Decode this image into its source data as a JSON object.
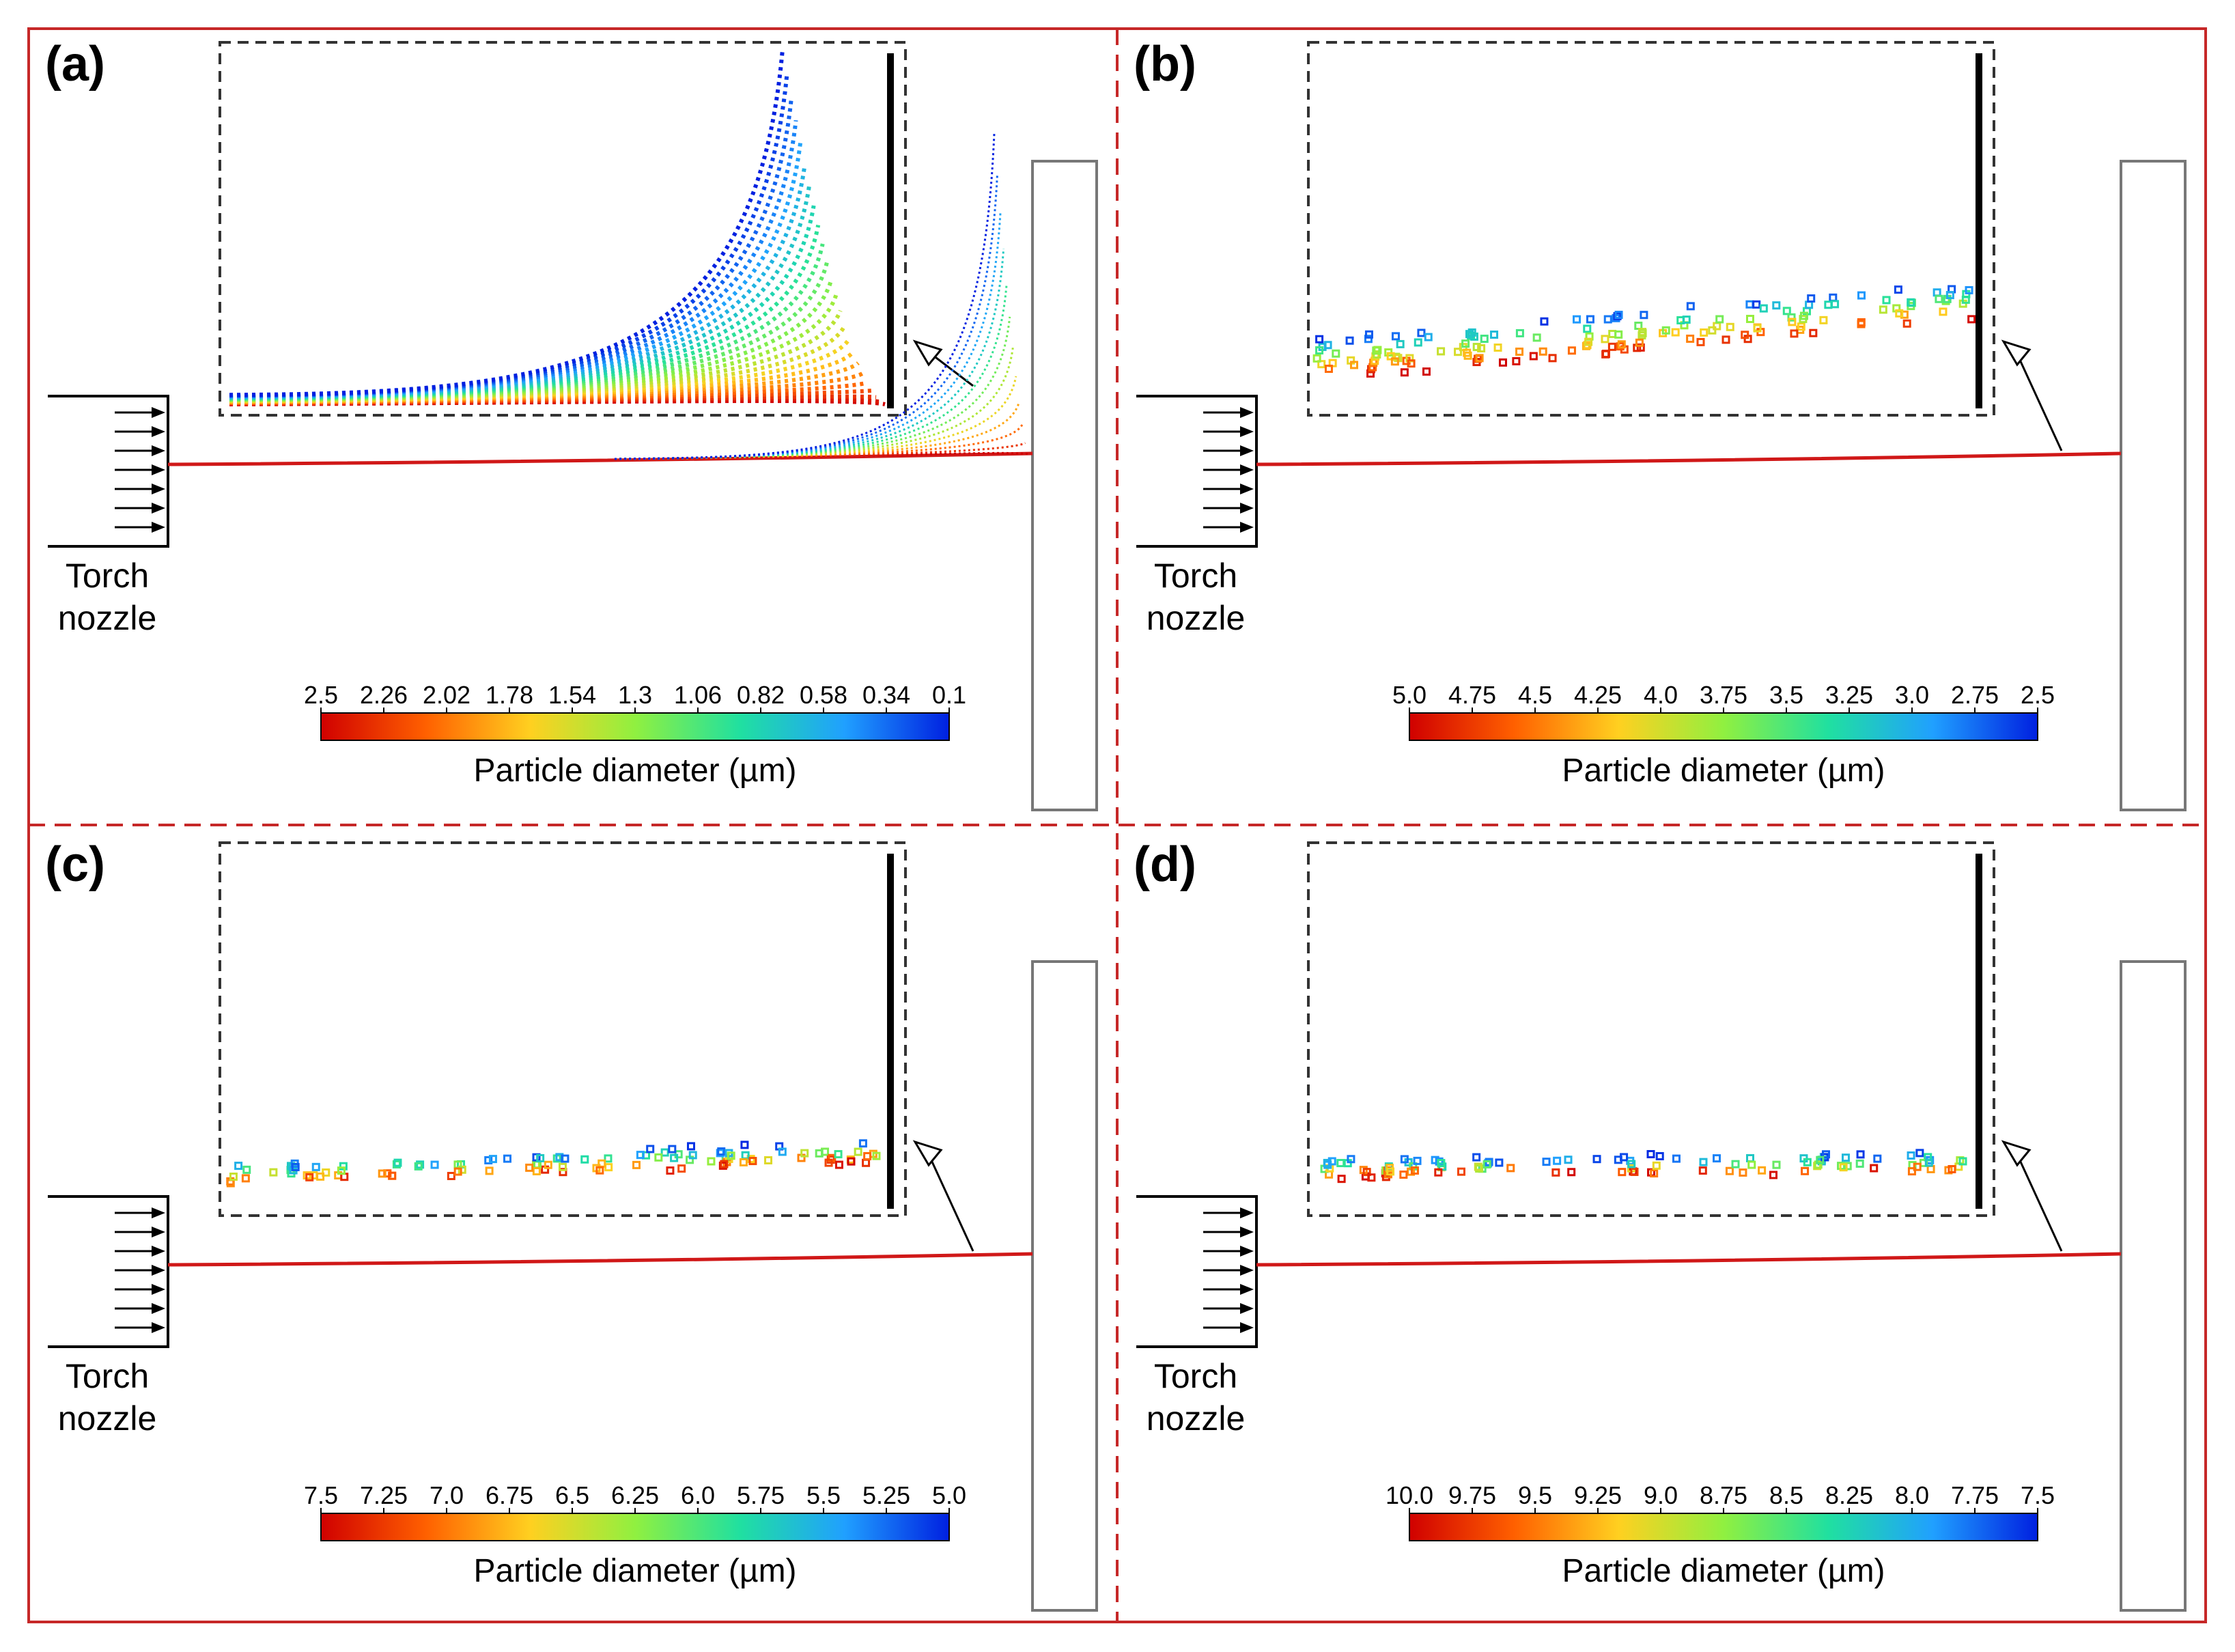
{
  "figure": {
    "colors": {
      "frame": "#c62828",
      "beam": "#d01818",
      "inset_border": "#333333",
      "substrate": "#777777"
    },
    "colorbar_stops": [
      "#d00000",
      "#ff6000",
      "#ffd020",
      "#90f040",
      "#20e0a0",
      "#20a0ff",
      "#0020e0"
    ],
    "panels": [
      {
        "id": "a",
        "label": "(a)",
        "nozzle_label": [
          "Torch",
          "nozzle"
        ],
        "colorbar": {
          "ticks": [
            "2.5",
            "2.26",
            "2.02",
            "1.78",
            "1.54",
            "1.3",
            "1.06",
            "0.82",
            "0.58",
            "0.34",
            "0.1"
          ],
          "title": "Particle diameter (µm)"
        },
        "icon": "trajectory-fan-icon"
      },
      {
        "id": "b",
        "label": "(b)",
        "nozzle_label": [
          "Torch",
          "nozzle"
        ],
        "colorbar": {
          "ticks": [
            "5.0",
            "4.75",
            "4.5",
            "4.25",
            "4.0",
            "3.75",
            "3.5",
            "3.25",
            "3.0",
            "2.75",
            "2.5"
          ],
          "title": "Particle diameter (µm)"
        },
        "icon": "particle-scatter-icon"
      },
      {
        "id": "c",
        "label": "(c)",
        "nozzle_label": [
          "Torch",
          "nozzle"
        ],
        "colorbar": {
          "ticks": [
            "7.5",
            "7.25",
            "7.0",
            "6.75",
            "6.5",
            "6.25",
            "6.0",
            "5.75",
            "5.5",
            "5.25",
            "5.0"
          ],
          "title": "Particle diameter (µm)"
        },
        "icon": "particle-scatter-icon"
      },
      {
        "id": "d",
        "label": "(d)",
        "nozzle_label": [
          "Torch",
          "nozzle"
        ],
        "colorbar": {
          "ticks": [
            "10.0",
            "9.75",
            "9.5",
            "9.25",
            "9.0",
            "8.75",
            "8.5",
            "8.25",
            "8.0",
            "7.75",
            "7.5"
          ],
          "title": "Particle diameter (µm)"
        },
        "icon": "particle-scatter-icon"
      }
    ]
  }
}
